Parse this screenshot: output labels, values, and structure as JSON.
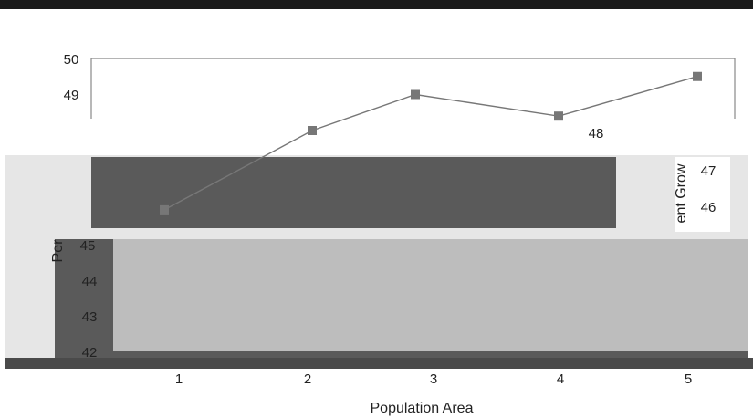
{
  "chart_data": {
    "type": "line",
    "title": "",
    "xlabel": "Population Area",
    "ylabel": "Percent Growth",
    "ylabel_visible": "Per",
    "ylabel_right_visible": "ent Grow",
    "categories": [
      "1",
      "2",
      "3",
      "4",
      "5"
    ],
    "series": [
      {
        "values": [
          45.8,
          48.0,
          49.0,
          48.4,
          49.5
        ]
      }
    ],
    "ylim": [
      42,
      50
    ],
    "yticks": [
      "42",
      "43",
      "44",
      "45",
      "46",
      "47",
      "48",
      "49",
      "50"
    ],
    "grid": false,
    "colors": {
      "line": "#777777",
      "marker": "#777777",
      "frame": "#888888",
      "header": "#1b1b1b",
      "dark_band": "#5a5a5a",
      "light_panel": "#bdbdbd"
    }
  }
}
